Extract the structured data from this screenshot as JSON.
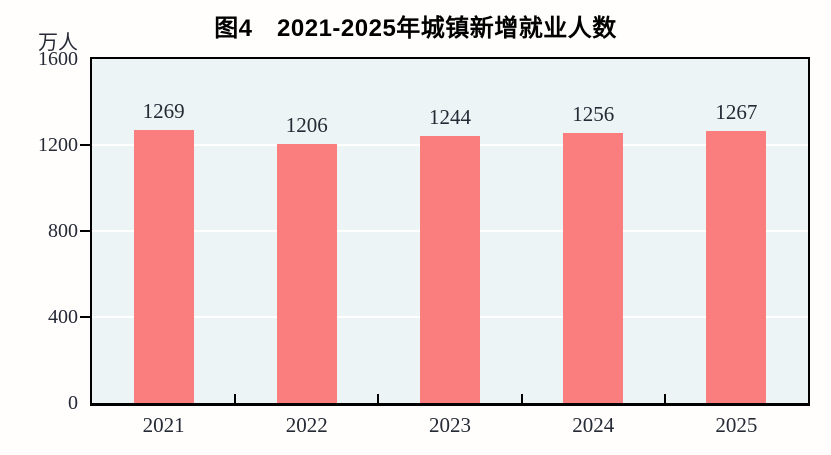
{
  "figure": {
    "title": "图4　2021-2025年城镇新增就业人数",
    "y_unit": "万人"
  },
  "chart_data": {
    "type": "bar",
    "title": "图4 2021-2025年城镇新增就业人数",
    "categories": [
      "2021",
      "2022",
      "2023",
      "2024",
      "2025"
    ],
    "values": [
      1269,
      1206,
      1244,
      1256,
      1267
    ],
    "xlabel": "",
    "ylabel": "万人",
    "ylim": [
      0,
      1600
    ],
    "yticks": [
      0,
      400,
      800,
      1200,
      1600
    ],
    "grid": true,
    "legend": false,
    "colors": {
      "bar": "#FB7E7E",
      "plot_background": "#ECF4F6",
      "gridline": "#FFFFFF",
      "axis": "#000000",
      "label_text": "#252A35",
      "title_text": "#000000",
      "page_background": "#FFFEFC"
    }
  }
}
